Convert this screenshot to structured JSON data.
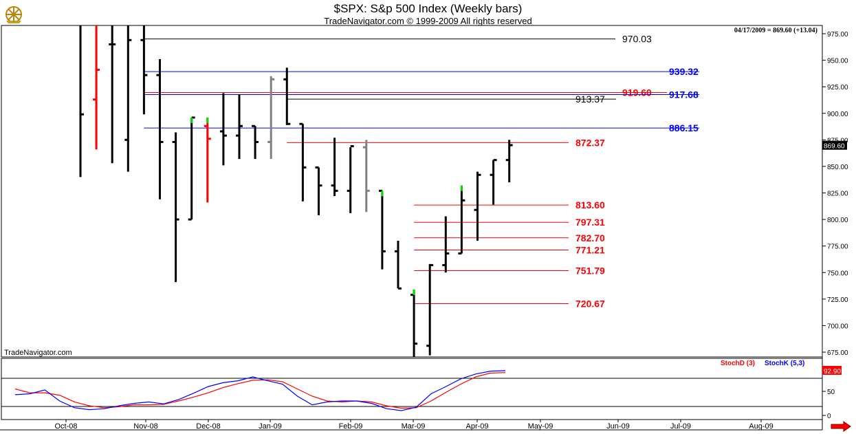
{
  "title": "$SPX:  S&p 500 Index  (Weekly bars)",
  "subtitle": "TradeNavigator.com © 1999-2009 All rights reserved",
  "info_line": "04/17/2009 = 869.60 (+13.04)",
  "watermark": "TradeNavigator.com",
  "last_price_label": "869.60",
  "stoch_last_label": "92.90",
  "colors": {
    "bar": "#000000",
    "up_marker": "#00dd00",
    "red_bar": "#ff0000",
    "gray_bar": "#808080",
    "level_black": "#000000",
    "level_blue": "#0000ff",
    "level_red": "#ff0000",
    "stoch_d": "#ff0000",
    "stoch_k": "#0000ff"
  },
  "icons": {
    "logo": "ship-wheel-logo-icon",
    "nav": "red-right-arrow-icon"
  },
  "chart_data": [
    {
      "type": "ohlc",
      "title": "$SPX:  S&p 500 Index  (Weekly bars)",
      "y_range": [
        650,
        985
      ],
      "y_ticks": [
        "975.00",
        "950.00",
        "925.00",
        "900.00",
        "875.00",
        "850.00",
        "825.00",
        "800.00",
        "775.00",
        "750.00",
        "725.00",
        "700.00",
        "675.00"
      ],
      "x_labels": [
        "Oct-08",
        "Nov-08",
        "Dec-08",
        "Jan-09",
        "Feb-09",
        "Mar-09",
        "Apr-09",
        "May-09",
        "Jun-09",
        "Jul-09",
        "Aug-09"
      ],
      "bars": [
        {
          "week": "2008-09-26",
          "open": 1213,
          "high": 1265,
          "low": 840,
          "close": 899,
          "color": "black"
        },
        {
          "week": "2008-10-03",
          "open": 913,
          "high": 1100,
          "low": 866,
          "close": 941,
          "color": "red"
        },
        {
          "week": "2008-10-10",
          "open": 965,
          "high": 1050,
          "low": 853,
          "close": 965,
          "color": "black"
        },
        {
          "week": "2008-10-17",
          "open": 875,
          "high": 986,
          "low": 845,
          "close": 969,
          "color": "black"
        },
        {
          "week": "2008-10-24",
          "open": 969,
          "high": 990,
          "low": 899,
          "close": 936,
          "color": "black"
        },
        {
          "week": "2008-10-31",
          "open": 936,
          "high": 951,
          "low": 819,
          "close": 873,
          "color": "black"
        },
        {
          "week": "2008-11-07",
          "open": 873,
          "high": 882,
          "low": 741,
          "close": 800,
          "color": "black"
        },
        {
          "week": "2008-11-14",
          "open": 800,
          "high": 896,
          "low": 800,
          "close": 896,
          "color": "black",
          "marker": "green"
        },
        {
          "week": "2008-11-21",
          "open": 888,
          "high": 896,
          "low": 816,
          "close": 876,
          "color": "red",
          "marker": "green"
        },
        {
          "week": "2008-11-28",
          "open": 883,
          "high": 919,
          "low": 851,
          "close": 879,
          "color": "black"
        },
        {
          "week": "2008-12-05",
          "open": 879,
          "high": 918,
          "low": 857,
          "close": 888,
          "color": "black"
        },
        {
          "week": "2008-12-12",
          "open": 888,
          "high": 888,
          "low": 857,
          "close": 873,
          "color": "black"
        },
        {
          "week": "2008-12-19",
          "open": 873,
          "high": 935,
          "low": 857,
          "close": 932,
          "color": "gray"
        },
        {
          "week": "2008-12-26",
          "open": 932,
          "high": 943,
          "low": 889,
          "close": 890,
          "color": "black"
        },
        {
          "week": "2009-01-02",
          "open": 890,
          "high": 890,
          "low": 817,
          "close": 849,
          "color": "black"
        },
        {
          "week": "2009-01-09",
          "open": 849,
          "high": 849,
          "low": 804,
          "close": 832,
          "color": "black"
        },
        {
          "week": "2009-01-16",
          "open": 832,
          "high": 877,
          "low": 822,
          "close": 827,
          "color": "black"
        },
        {
          "week": "2009-01-23",
          "open": 827,
          "high": 868,
          "low": 806,
          "close": 869,
          "color": "black"
        },
        {
          "week": "2009-01-30",
          "open": 868,
          "high": 875,
          "low": 807,
          "close": 827,
          "color": "gray"
        },
        {
          "week": "2009-02-06",
          "open": 827,
          "high": 827,
          "low": 753,
          "close": 770,
          "color": "black",
          "marker": "green"
        },
        {
          "week": "2009-02-13",
          "open": 770,
          "high": 780,
          "low": 735,
          "close": 735,
          "color": "black"
        },
        {
          "week": "2009-02-20",
          "open": 729,
          "high": 734,
          "low": 667,
          "close": 683,
          "color": "black",
          "marker": "green"
        },
        {
          "week": "2009-02-27",
          "open": 681,
          "high": 758,
          "low": 672,
          "close": 757,
          "color": "black"
        },
        {
          "week": "2009-03-06",
          "open": 757,
          "high": 803,
          "low": 750,
          "close": 768,
          "color": "black"
        },
        {
          "week": "2009-03-13",
          "open": 768,
          "high": 832,
          "low": 768,
          "close": 818,
          "color": "black",
          "marker": "green"
        },
        {
          "week": "2009-03-20",
          "open": 809,
          "high": 845,
          "low": 780,
          "close": 842,
          "color": "black"
        },
        {
          "week": "2009-03-27",
          "open": 842,
          "high": 856,
          "low": 814,
          "close": 856,
          "color": "black"
        },
        {
          "week": "2009-04-03",
          "open": 856,
          "high": 875,
          "low": 835,
          "close": 870,
          "color": "black"
        }
      ],
      "levels": [
        {
          "label": "970.03",
          "value": 970.03,
          "color": "black",
          "x_start": "2008-10-24"
        },
        {
          "label": "939.32",
          "value": 939.32,
          "color": "blue",
          "x_start": "2008-10-24"
        },
        {
          "label": "919.60",
          "value": 919.6,
          "color": "red",
          "x_start": "2008-10-24"
        },
        {
          "label": "917.68",
          "value": 917.68,
          "color": "blue",
          "x_start": "2008-10-24"
        },
        {
          "label": "913.37",
          "value": 913.37,
          "color": "black",
          "x_start": "2008-12-26"
        },
        {
          "label": "886.15",
          "value": 886.15,
          "color": "blue",
          "x_start": "2008-10-24"
        },
        {
          "label": "872.37",
          "value": 872.37,
          "color": "red",
          "x_start": "2008-12-26"
        },
        {
          "label": "813.60",
          "value": 813.6,
          "color": "red",
          "x_start": "2009-02-20"
        },
        {
          "label": "797.31",
          "value": 797.31,
          "color": "red",
          "x_start": "2009-02-20"
        },
        {
          "label": "782.70",
          "value": 782.7,
          "color": "red",
          "x_start": "2009-02-20"
        },
        {
          "label": "771.21",
          "value": 771.21,
          "color": "red",
          "x_start": "2009-02-20"
        },
        {
          "label": "751.79",
          "value": 751.79,
          "color": "red",
          "x_start": "2009-02-20"
        },
        {
          "label": "720.67",
          "value": 720.67,
          "color": "red",
          "x_start": "2009-02-20"
        }
      ]
    },
    {
      "type": "line",
      "y_range": [
        -5,
        105
      ],
      "y_ticks": [
        "50",
        "0"
      ],
      "series": [
        {
          "name": "StochD (3)",
          "color": "red",
          "values": [
            55,
            47,
            47,
            42,
            28,
            20,
            16,
            18,
            22,
            22,
            23,
            30,
            38,
            47,
            58,
            66,
            73,
            74,
            70,
            55,
            40,
            30,
            28,
            30,
            28,
            20,
            15,
            16,
            30,
            48,
            65,
            80,
            88,
            89
          ]
        },
        {
          "name": "StochK (5,3)",
          "color": "blue",
          "values": [
            43,
            45,
            53,
            30,
            16,
            12,
            14,
            20,
            25,
            28,
            24,
            33,
            46,
            60,
            68,
            72,
            80,
            72,
            65,
            40,
            22,
            28,
            30,
            30,
            25,
            14,
            10,
            17,
            45,
            60,
            76,
            86,
            92,
            93
          ]
        }
      ]
    }
  ]
}
